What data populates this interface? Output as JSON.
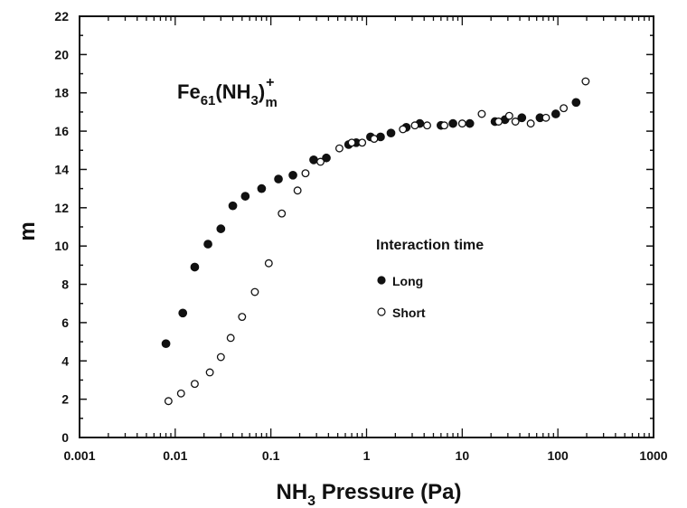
{
  "chart_data": {
    "type": "scatter",
    "title_parts": {
      "base": "Fe",
      "sub1": "61",
      "mid": "(NH",
      "sub2": "3",
      "close": ")",
      "sup": "+",
      "sub3": "m"
    },
    "xlabel_parts": {
      "base": "NH",
      "sub": "3",
      "rest": " Pressure (Pa)"
    },
    "ylabel": "m",
    "x_scale": "log",
    "xlim": [
      0.001,
      1000
    ],
    "ylim": [
      0,
      22
    ],
    "x_tick_labels": [
      "0.001",
      "0.01",
      "0.1",
      "1",
      "10",
      "100",
      "1000"
    ],
    "x_tick_values": [
      0.001,
      0.01,
      0.1,
      1,
      10,
      100,
      1000
    ],
    "y_tick_values": [
      0,
      2,
      4,
      6,
      8,
      10,
      12,
      14,
      16,
      18,
      20,
      22
    ],
    "legend": {
      "title": "Interaction time",
      "placement": "center-right",
      "entries": [
        {
          "label": "Long",
          "marker": "filled-circle"
        },
        {
          "label": "Short",
          "marker": "open-circle"
        }
      ]
    },
    "series": [
      {
        "name": "Long",
        "marker": "filled-circle",
        "points": [
          [
            0.008,
            4.9
          ],
          [
            0.012,
            6.5
          ],
          [
            0.016,
            8.9
          ],
          [
            0.022,
            10.1
          ],
          [
            0.03,
            10.9
          ],
          [
            0.04,
            12.1
          ],
          [
            0.054,
            12.6
          ],
          [
            0.08,
            13.0
          ],
          [
            0.12,
            13.5
          ],
          [
            0.17,
            13.7
          ],
          [
            0.28,
            14.5
          ],
          [
            0.38,
            14.6
          ],
          [
            0.65,
            15.3
          ],
          [
            0.78,
            15.4
          ],
          [
            1.1,
            15.7
          ],
          [
            1.4,
            15.7
          ],
          [
            1.8,
            15.9
          ],
          [
            2.6,
            16.2
          ],
          [
            3.6,
            16.4
          ],
          [
            6,
            16.3
          ],
          [
            8,
            16.4
          ],
          [
            12,
            16.4
          ],
          [
            22,
            16.5
          ],
          [
            28,
            16.6
          ],
          [
            42,
            16.7
          ],
          [
            65,
            16.7
          ],
          [
            95,
            16.9
          ],
          [
            155,
            17.5
          ]
        ]
      },
      {
        "name": "Short",
        "marker": "open-circle",
        "points": [
          [
            0.0085,
            1.9
          ],
          [
            0.0115,
            2.3
          ],
          [
            0.016,
            2.8
          ],
          [
            0.023,
            3.4
          ],
          [
            0.03,
            4.2
          ],
          [
            0.038,
            5.2
          ],
          [
            0.05,
            6.3
          ],
          [
            0.068,
            7.6
          ],
          [
            0.095,
            9.1
          ],
          [
            0.13,
            11.7
          ],
          [
            0.19,
            12.9
          ],
          [
            0.23,
            13.8
          ],
          [
            0.33,
            14.4
          ],
          [
            0.52,
            15.1
          ],
          [
            0.7,
            15.4
          ],
          [
            0.9,
            15.4
          ],
          [
            1.2,
            15.6
          ],
          [
            2.4,
            16.1
          ],
          [
            3.2,
            16.3
          ],
          [
            4.3,
            16.3
          ],
          [
            6.5,
            16.3
          ],
          [
            10,
            16.4
          ],
          [
            16,
            16.9
          ],
          [
            24,
            16.5
          ],
          [
            31,
            16.8
          ],
          [
            36,
            16.5
          ],
          [
            52,
            16.4
          ],
          [
            75,
            16.7
          ],
          [
            115,
            17.2
          ],
          [
            195,
            18.6
          ]
        ]
      }
    ]
  }
}
